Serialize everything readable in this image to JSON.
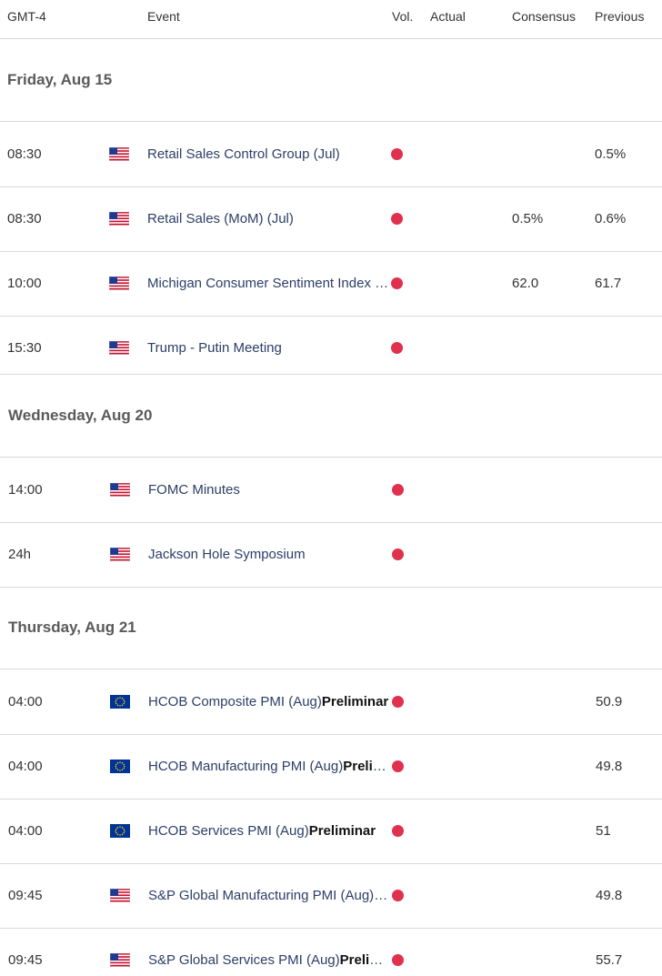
{
  "header": {
    "timezone": "GMT-4",
    "event": "Event",
    "vol": "Vol.",
    "actual": "Actual",
    "consensus": "Consensus",
    "previous": "Previous"
  },
  "colors": {
    "high_volatility": "#e0304e",
    "event_text": "#2c3e66"
  },
  "days": [
    {
      "label": "Friday, Aug 15",
      "events": [
        {
          "time": "08:30",
          "flag": "us-flag-icon",
          "event": "Retail Sales Control Group (Jul)",
          "bold": "",
          "actual": "",
          "consensus": "",
          "previous": "0.5%"
        },
        {
          "time": "08:30",
          "flag": "us-flag-icon",
          "event": "Retail Sales (MoM) (Jul)",
          "bold": "",
          "actual": "",
          "consensus": "0.5%",
          "previous": "0.6%"
        },
        {
          "time": "10:00",
          "flag": "us-flag-icon",
          "event": "Michigan Consumer Sentiment Index (Aug) Preliminary",
          "bold": "",
          "actual": "",
          "consensus": "62.0",
          "previous": "61.7"
        },
        {
          "time": "15:30",
          "flag": "us-flag-icon",
          "event": "Trump - Putin Meeting",
          "bold": "",
          "actual": "",
          "consensus": "",
          "previous": ""
        }
      ]
    },
    {
      "label": "Wednesday, Aug 20",
      "events": [
        {
          "time": "14:00",
          "flag": "us-flag-icon",
          "event": "FOMC Minutes",
          "bold": "",
          "actual": "",
          "consensus": "",
          "previous": ""
        },
        {
          "time": "24h",
          "flag": "us-flag-icon",
          "event": "Jackson Hole Symposium",
          "bold": "",
          "actual": "",
          "consensus": "",
          "previous": ""
        }
      ]
    },
    {
      "label": "Thursday, Aug 21",
      "events": [
        {
          "time": "04:00",
          "flag": "eu-flag-icon",
          "event": "HCOB Composite PMI (Aug)",
          "bold": "Preliminar",
          "actual": "",
          "consensus": "",
          "previous": "50.9"
        },
        {
          "time": "04:00",
          "flag": "eu-flag-icon",
          "event": "HCOB Manufacturing PMI (Aug)",
          "bold": "Preliminary",
          "actual": "",
          "consensus": "",
          "previous": "49.8"
        },
        {
          "time": "04:00",
          "flag": "eu-flag-icon",
          "event": "HCOB Services PMI (Aug)",
          "bold": "Preliminar",
          "actual": "",
          "consensus": "",
          "previous": "51"
        },
        {
          "time": "09:45",
          "flag": "us-flag-icon",
          "event": "S&P Global Manufacturing PMI (Aug) Preliminary",
          "bold": "",
          "actual": "",
          "consensus": "",
          "previous": "49.8"
        },
        {
          "time": "09:45",
          "flag": "us-flag-icon",
          "event": "S&P Global Services PMI (Aug)",
          "bold": "Preliminary",
          "actual": "",
          "consensus": "",
          "previous": "55.7"
        }
      ]
    }
  ]
}
